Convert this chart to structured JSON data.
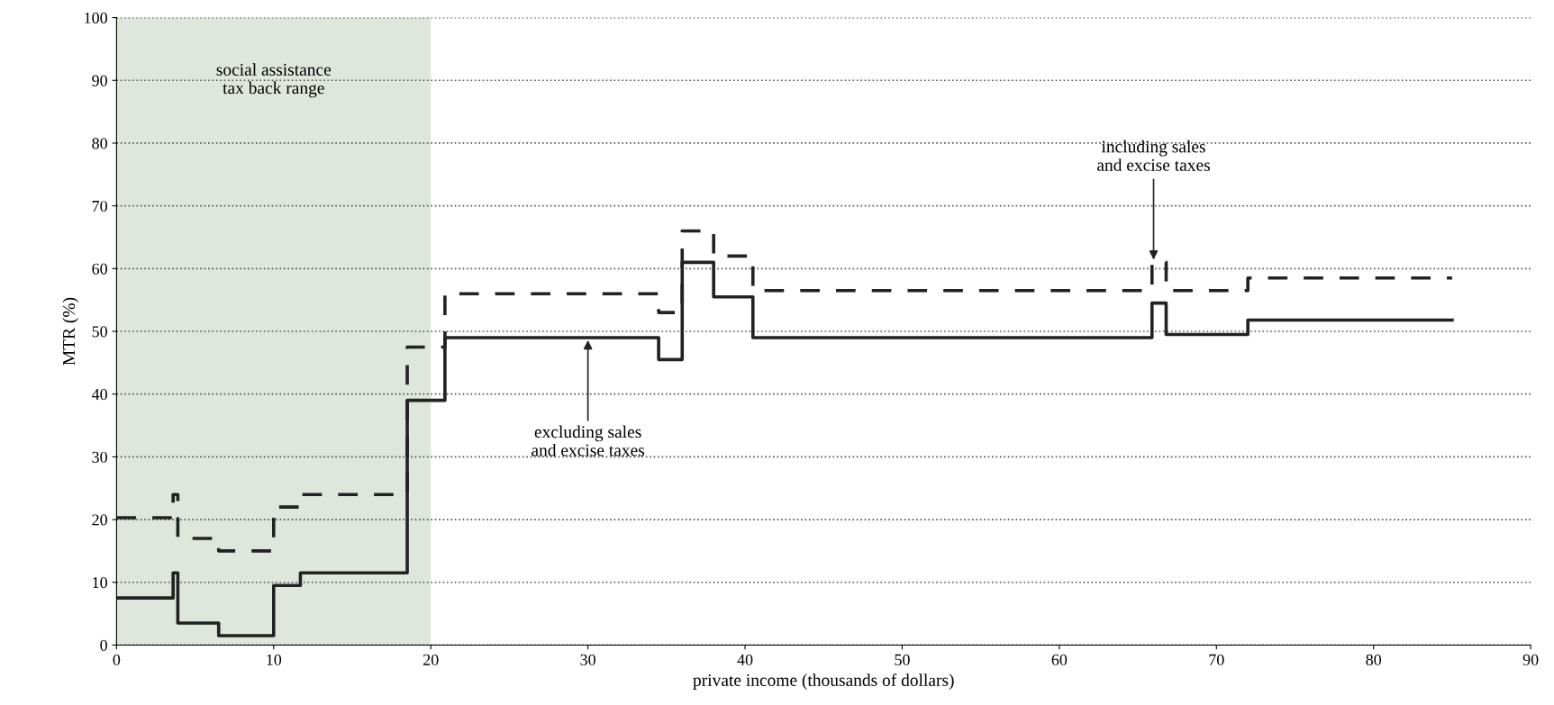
{
  "chart_data": {
    "type": "step",
    "xlabel": "private income (thousands of dollars)",
    "ylabel": "MTR (%)",
    "xlim": [
      0,
      90
    ],
    "ylim": [
      0,
      100
    ],
    "xticks": [
      0,
      10,
      20,
      30,
      40,
      50,
      60,
      70,
      80,
      90
    ],
    "yticks": [
      0,
      10,
      20,
      30,
      40,
      50,
      60,
      70,
      80,
      90,
      100
    ],
    "grid": "y",
    "bands": [
      {
        "axis": "x",
        "from": 0,
        "to": 20,
        "label": "social assistance\ntax back range",
        "color": "#dfe6dc"
      }
    ],
    "series": [
      {
        "color": "#222222",
        "line_style": "solid",
        "x": [
          0,
          3.6,
          3.9,
          6.5,
          10,
          11.7,
          18.5,
          20.9,
          34.5,
          36,
          38,
          40.5,
          65.9,
          66.8,
          72,
          85
        ],
        "values": [
          7.5,
          11.5,
          3.5,
          1.5,
          9.5,
          11.5,
          39,
          49,
          45.5,
          61,
          55.5,
          49,
          54.5,
          49.5,
          51.8,
          51.8
        ]
      },
      {
        "color": "#222222",
        "line_style": "dashed",
        "x": [
          0,
          3.6,
          3.9,
          6.5,
          10,
          11.7,
          18.5,
          20.9,
          34.5,
          36,
          38,
          40.5,
          65.9,
          66.8,
          72,
          85
        ],
        "values": [
          20.3,
          24,
          17,
          15,
          22,
          24,
          47.5,
          56,
          53,
          66,
          62,
          56.5,
          61,
          56.5,
          58.5,
          58.5
        ]
      }
    ],
    "annotations": [
      {
        "text": "excluding sales\nand excise taxes",
        "x": 30,
        "y": 49
      },
      {
        "text": "including sales\nand excise taxes",
        "x": 66,
        "y": 61
      }
    ]
  }
}
